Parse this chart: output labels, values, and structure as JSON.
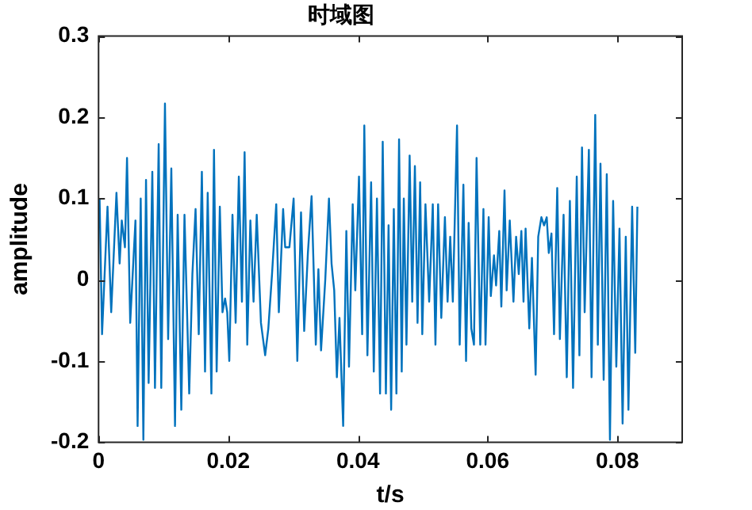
{
  "chart_data": {
    "type": "line",
    "title": "时域图",
    "xlabel": "t/s",
    "ylabel": "amplitude",
    "xlim": [
      0,
      0.09
    ],
    "xticks": [
      0,
      0.02,
      0.04,
      0.06,
      0.08
    ],
    "ylim": [
      -0.2,
      0.3
    ],
    "yticks": [
      -0.2,
      -0.1,
      0,
      0.1,
      0.2,
      0.3
    ],
    "grid": false,
    "legend": false,
    "marker": "none",
    "line_style": "solid",
    "series": [
      {
        "color": "#0072bd",
        "x": [
          0.00016,
          0.00054,
          0.00138,
          0.00195,
          0.00276,
          0.00325,
          0.00358,
          0.00407,
          0.00439,
          0.00488,
          0.00569,
          0.00602,
          0.0065,
          0.00691,
          0.00732,
          0.00772,
          0.00829,
          0.0087,
          0.00927,
          0.00967,
          0.01024,
          0.01073,
          0.01122,
          0.01179,
          0.0122,
          0.01276,
          0.01325,
          0.01398,
          0.01447,
          0.01496,
          0.01545,
          0.01593,
          0.01642,
          0.01683,
          0.0174,
          0.0178,
          0.01821,
          0.0187,
          0.01911,
          0.01951,
          0.01984,
          0.02016,
          0.02065,
          0.02114,
          0.02163,
          0.02211,
          0.02252,
          0.02293,
          0.02341,
          0.0239,
          0.02439,
          0.02504,
          0.02569,
          0.02618,
          0.02675,
          0.0274,
          0.0278,
          0.02846,
          0.02878,
          0.02943,
          0.03008,
          0.03065,
          0.03122,
          0.03171,
          0.03228,
          0.03285,
          0.0335,
          0.0339,
          0.03431,
          0.03496,
          0.03553,
          0.03593,
          0.03634,
          0.03675,
          0.03715,
          0.03772,
          0.03821,
          0.03862,
          0.03919,
          0.03959,
          0.04016,
          0.04065,
          0.04098,
          0.04146,
          0.04203,
          0.04244,
          0.04293,
          0.04341,
          0.04382,
          0.04431,
          0.04472,
          0.04512,
          0.04553,
          0.04593,
          0.04634,
          0.04675,
          0.04707,
          0.04748,
          0.04797,
          0.04837,
          0.04878,
          0.04919,
          0.04959,
          0.04992,
          0.05041,
          0.05098,
          0.05154,
          0.05195,
          0.05236,
          0.05285,
          0.05341,
          0.05382,
          0.05423,
          0.05463,
          0.05528,
          0.05569,
          0.05626,
          0.05667,
          0.05707,
          0.05748,
          0.05789,
          0.05829,
          0.05886,
          0.05935,
          0.05967,
          0.06016,
          0.06049,
          0.06098,
          0.0613,
          0.06179,
          0.06211,
          0.0626,
          0.06293,
          0.06341,
          0.06398,
          0.06439,
          0.0648,
          0.0652,
          0.06553,
          0.06585,
          0.06642,
          0.06683,
          0.0674,
          0.0678,
          0.06829,
          0.0687,
          0.06911,
          0.06943,
          0.06984,
          0.07024,
          0.07073,
          0.07114,
          0.07171,
          0.0722,
          0.07268,
          0.07317,
          0.07374,
          0.07415,
          0.07455,
          0.07496,
          0.07561,
          0.07602,
          0.07659,
          0.07699,
          0.0774,
          0.07789,
          0.07837,
          0.07886,
          0.07935,
          0.07984,
          0.08033,
          0.08081,
          0.0813,
          0.08171,
          0.08228,
          0.08276,
          0.08309
        ],
        "values": [
          0.1,
          -0.067,
          0.09,
          -0.04,
          0.107,
          0.02,
          0.073,
          0.04,
          0.15,
          -0.053,
          0.073,
          -0.18,
          0.1,
          -0.197,
          0.123,
          -0.127,
          0.133,
          -0.133,
          0.167,
          -0.133,
          0.217,
          -0.073,
          0.137,
          -0.18,
          0.08,
          -0.16,
          0.08,
          -0.14,
          0.007,
          0.087,
          -0.067,
          0.133,
          -0.113,
          0.107,
          -0.14,
          0.16,
          -0.113,
          0.09,
          -0.04,
          -0.023,
          -0.04,
          -0.1,
          0.08,
          -0.053,
          0.127,
          -0.027,
          0.157,
          -0.08,
          0.073,
          -0.027,
          0.08,
          -0.053,
          -0.093,
          -0.06,
          0.007,
          0.093,
          -0.04,
          0.087,
          0.04,
          0.04,
          0.1,
          -0.1,
          0.083,
          -0.063,
          0.033,
          0.103,
          -0.08,
          0.013,
          -0.087,
          0,
          0.1,
          0.02,
          -0.013,
          -0.12,
          -0.047,
          -0.18,
          0.06,
          -0.107,
          0.093,
          -0.013,
          0.127,
          -0.067,
          0.19,
          -0.093,
          0.12,
          -0.113,
          0.1,
          -0.14,
          0.17,
          -0.14,
          0.067,
          -0.16,
          0.087,
          -0.14,
          0.173,
          -0.113,
          0.1,
          -0.08,
          0.153,
          -0.027,
          0.14,
          -0.053,
          0.12,
          -0.067,
          0.093,
          -0.027,
          0.093,
          -0.08,
          0.093,
          -0.047,
          0.077,
          -0.027,
          0.053,
          -0.027,
          0.19,
          -0.08,
          0.117,
          -0.1,
          0.07,
          -0.06,
          -0.08,
          0.15,
          -0.08,
          0.087,
          -0.08,
          0.077,
          -0.02,
          0.03,
          -0.007,
          0.06,
          -0.033,
          0.11,
          -0.013,
          0.073,
          -0.027,
          0.053,
          0.007,
          0.06,
          -0.027,
          0.063,
          -0.06,
          0.027,
          -0.117,
          0.053,
          0.077,
          0.067,
          0.077,
          0.033,
          0.057,
          -0.067,
          0.113,
          -0.073,
          0.08,
          -0.12,
          0.097,
          -0.133,
          0.127,
          -0.093,
          0.163,
          -0.04,
          0.16,
          -0.12,
          0.203,
          -0.08,
          0.143,
          -0.123,
          0.13,
          -0.197,
          0.097,
          -0.107,
          0.063,
          -0.177,
          0.053,
          -0.16,
          0.09,
          -0.09,
          0.09
        ]
      }
    ]
  }
}
